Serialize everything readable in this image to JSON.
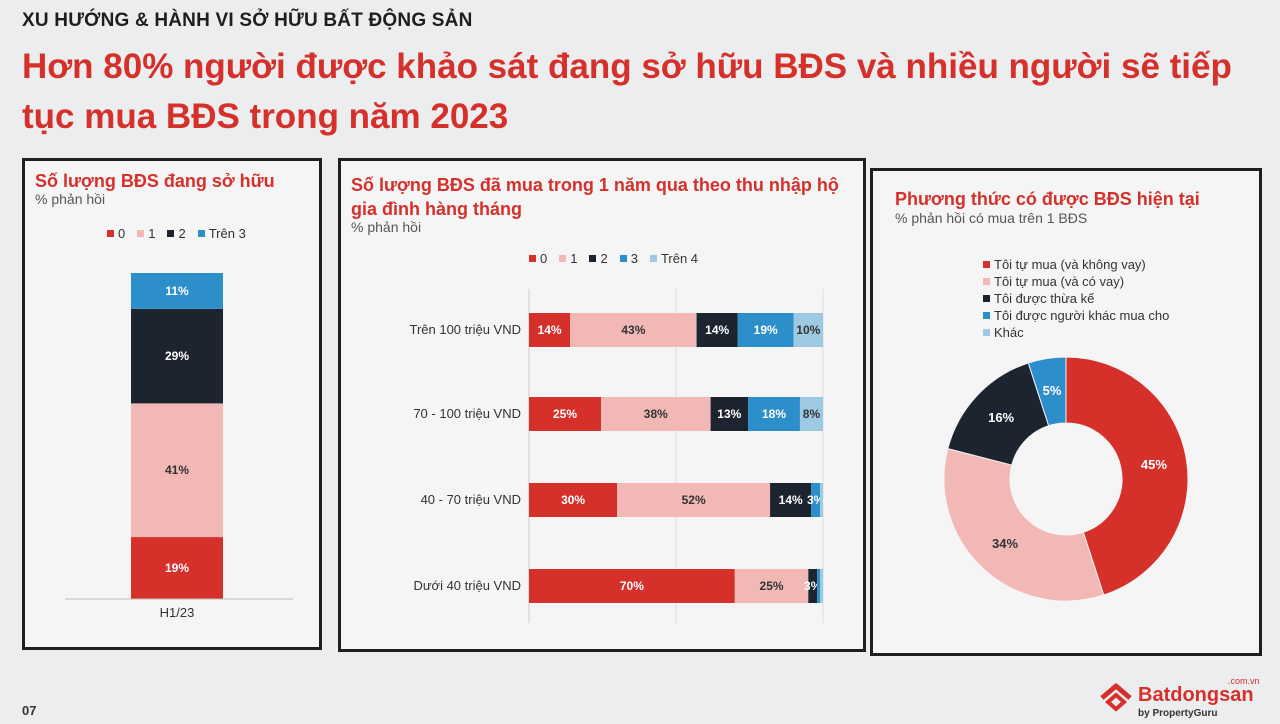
{
  "header": "XU HƯỚNG & HÀNH VI SỞ HỮU BẤT ĐỘNG SẢN",
  "headline": "Hơn 80% người được khảo sát đang sở hữu BĐS và nhiều người sẽ tiếp tục mua BĐS trong năm 2023",
  "colors": {
    "c0": "#d6302b",
    "c1": "#f1b8b6",
    "c2": "#1c2430",
    "c3": "#2c8fc9",
    "c4": "#9dc9e2"
  },
  "chart_data": [
    {
      "type": "bar",
      "stacked": true,
      "title": "Số lượng BĐS đang sở hữu",
      "subtitle": "% phản hồi",
      "categories": [
        "H1/23"
      ],
      "legend": [
        "0",
        "1",
        "2",
        "Trên 3"
      ],
      "legend_position": "top",
      "series": [
        {
          "name": "0",
          "values": [
            19
          ]
        },
        {
          "name": "1",
          "values": [
            41
          ]
        },
        {
          "name": "2",
          "values": [
            29
          ]
        },
        {
          "name": "Trên 3",
          "values": [
            11
          ]
        }
      ],
      "labels": [
        "19%",
        "41%",
        "29%",
        "11%"
      ]
    },
    {
      "type": "bar",
      "orientation": "horizontal",
      "stacked": true,
      "title": "Số lượng BĐS đã mua trong 1 năm qua theo thu nhập hộ gia đình hàng tháng",
      "subtitle": "% phản hồi",
      "legend": [
        "0",
        "1",
        "2",
        "3",
        "Trên 4"
      ],
      "legend_position": "top",
      "categories": [
        "Trên 100 triệu VND",
        "70 - 100 triệu VND",
        "40 - 70 triệu VND",
        "Dưới 40 triệu VND"
      ],
      "series": [
        {
          "name": "0",
          "values": [
            14,
            25,
            30,
            70
          ]
        },
        {
          "name": "1",
          "values": [
            43,
            38,
            52,
            25
          ]
        },
        {
          "name": "2",
          "values": [
            14,
            13,
            14,
            3
          ]
        },
        {
          "name": "3",
          "values": [
            19,
            18,
            3,
            1
          ]
        },
        {
          "name": "Trên 4",
          "values": [
            10,
            8,
            1,
            1
          ]
        }
      ],
      "labels": [
        [
          "14%",
          "43%",
          "14%",
          "19%",
          "10%"
        ],
        [
          "25%",
          "38%",
          "13%",
          "18%",
          "8%"
        ],
        [
          "30%",
          "52%",
          "14%",
          "3%",
          ""
        ],
        [
          "70%",
          "25%",
          "3%",
          "",
          ""
        ]
      ]
    },
    {
      "type": "pie",
      "donut": true,
      "title": "Phương thức có được BĐS hiện tại",
      "subtitle": "% phản hồi có mua trên 1 BĐS",
      "legend_position": "top",
      "slices": [
        {
          "name": "Tôi tự mua (và không vay)",
          "value": 45,
          "label": "45%"
        },
        {
          "name": "Tôi tự mua (và có vay)",
          "value": 34,
          "label": "34%"
        },
        {
          "name": "Tôi được thừa kế",
          "value": 16,
          "label": "16%"
        },
        {
          "name": "Tôi được người khác mua cho",
          "value": 5,
          "label": "5%"
        },
        {
          "name": "Khác",
          "value": 0,
          "label": ""
        }
      ]
    }
  ],
  "page_number": "07",
  "brand": {
    "name": "Batdongsan",
    "suffix": ".com.vn",
    "by": "by PropertyGuru"
  }
}
